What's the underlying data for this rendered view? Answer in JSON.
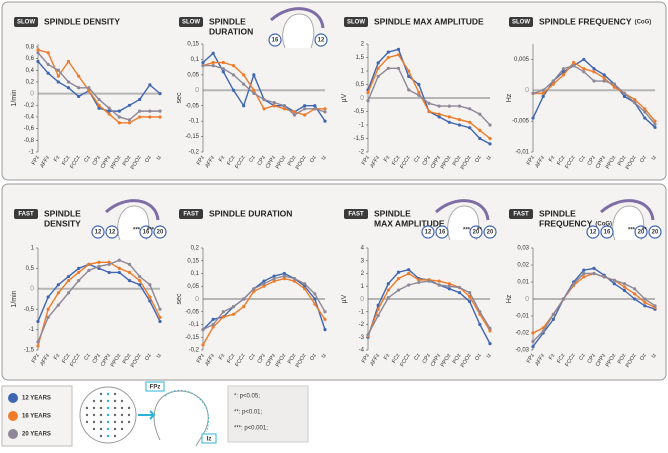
{
  "chart_data": [
    {
      "type": "line",
      "badge": "SLOW",
      "title": [
        "SPINDLE DENSITY"
      ],
      "ylabel": "1/min",
      "categories": [
        "FPz",
        "AFFz",
        "Fz",
        "FCz",
        "FCCz",
        "Cz",
        "CPz",
        "CPPz",
        "PPOz",
        "POz",
        "POOz",
        "Oz",
        "Iz"
      ],
      "ylim": [
        -1,
        0.85
      ],
      "yticks": [
        {
          "value": 0.8,
          "label": "0,8"
        },
        {
          "value": 0.6,
          "label": "0,6"
        },
        {
          "value": 0.4,
          "label": "0,4"
        },
        {
          "value": 0.2,
          "label": "0,2"
        },
        0,
        {
          "value": -0.2,
          "label": "-0,2"
        },
        {
          "value": -0.4,
          "label": "-0,4"
        },
        {
          "value": -0.6,
          "label": "-0,6"
        },
        {
          "value": -0.8,
          "label": "-0,8"
        },
        -1
      ],
      "series": [
        {
          "name": "12 YEARS",
          "color": "#3f66b0",
          "values": [
            0.55,
            0.35,
            0.2,
            0.1,
            -0.05,
            0.05,
            -0.25,
            -0.3,
            -0.3,
            -0.2,
            -0.1,
            0.15,
            0
          ]
        },
        {
          "name": "16 YEARS",
          "color": "#ee7b2a",
          "values": [
            0.75,
            0.7,
            0.3,
            0.55,
            0.3,
            0.05,
            -0.2,
            -0.35,
            -0.5,
            -0.5,
            -0.4,
            -0.4,
            -0.4
          ]
        },
        {
          "name": "20 YEARS",
          "color": "#8e8797",
          "values": [
            0.7,
            0.5,
            0.4,
            0.2,
            0.1,
            0.1,
            -0.1,
            -0.25,
            -0.4,
            -0.45,
            -0.3,
            -0.3,
            -0.3
          ]
        }
      ]
    },
    {
      "type": "line",
      "badge": "SLOW",
      "title": [
        "SPINDLE",
        "DURATION"
      ],
      "ylabel": "sec",
      "annotations": [
        "16",
        "12"
      ],
      "categories": [
        "FPz",
        "AFFz",
        "Fz",
        "FCz",
        "FCCz",
        "Cz",
        "CPz",
        "CPPz",
        "PPOz",
        "POz",
        "POOz",
        "Oz",
        "Iz"
      ],
      "ylim": [
        -0.2,
        0.15
      ],
      "yticks": [
        {
          "value": 0.15,
          "label": "0,15"
        },
        {
          "value": 0.1,
          "label": "0,1"
        },
        {
          "value": 0.05,
          "label": "0,05"
        },
        0,
        {
          "value": -0.05,
          "label": "-0,05"
        },
        {
          "value": -0.1,
          "label": "-0,1"
        },
        {
          "value": -0.15,
          "label": "-0,15"
        },
        {
          "value": -0.2,
          "label": "-0,2"
        }
      ],
      "series": [
        {
          "name": "12 YEARS",
          "color": "#3f66b0",
          "values": [
            0.09,
            0.12,
            0.06,
            0.0,
            -0.05,
            0.05,
            -0.03,
            -0.05,
            -0.05,
            -0.07,
            -0.05,
            -0.05,
            -0.1
          ]
        },
        {
          "name": "16 YEARS",
          "color": "#ee7b2a",
          "values": [
            0.08,
            0.09,
            0.09,
            0.08,
            0.05,
            0.0,
            -0.06,
            -0.05,
            -0.06,
            -0.07,
            -0.08,
            -0.06,
            -0.06
          ]
        },
        {
          "name": "20 YEARS",
          "color": "#8e8797",
          "values": [
            0.08,
            0.08,
            0.07,
            0.05,
            0.02,
            -0.01,
            -0.03,
            -0.04,
            -0.05,
            -0.08,
            -0.06,
            -0.06,
            -0.07
          ]
        }
      ]
    },
    {
      "type": "line",
      "badge": "SLOW",
      "title": [
        "SPINDLE MAX AMPLITUDE"
      ],
      "ylabel": "µV",
      "categories": [
        "FPz",
        "AFFz",
        "Fz",
        "FCz",
        "FCCz",
        "Cz",
        "CPz",
        "CPPz",
        "PPOz",
        "POz",
        "POOz",
        "Oz",
        "Iz"
      ],
      "ylim": [
        -2,
        2
      ],
      "yticks": [
        2,
        {
          "value": 1.5,
          "label": "1,5"
        },
        1,
        {
          "value": 0.5,
          "label": "0,5"
        },
        0,
        {
          "value": -0.5,
          "label": "-0,5"
        },
        -1,
        {
          "value": -1.5,
          "label": "-1,5"
        },
        -2
      ],
      "series": [
        {
          "name": "12 YEARS",
          "color": "#3f66b0",
          "values": [
            0.3,
            1.3,
            1.7,
            1.8,
            0.8,
            0.5,
            -0.5,
            -0.7,
            -0.9,
            -1.0,
            -1.1,
            -1.5,
            -1.7
          ]
        },
        {
          "name": "16 YEARS",
          "color": "#ee7b2a",
          "values": [
            0.2,
            1.1,
            1.5,
            1.6,
            1.0,
            0.2,
            -0.5,
            -0.6,
            -0.7,
            -0.8,
            -0.9,
            -1.2,
            -1.5
          ]
        },
        {
          "name": "20 YEARS",
          "color": "#8e8797",
          "values": [
            -0.1,
            0.8,
            1.1,
            1.1,
            0.3,
            0.1,
            -0.2,
            -0.3,
            -0.3,
            -0.3,
            -0.4,
            -0.6,
            -1.0
          ]
        }
      ]
    },
    {
      "type": "line",
      "badge": "SLOW",
      "title": [
        "SPINDLE FREQUENCY"
      ],
      "title_note": "(CoG)",
      "ylabel": "Hz",
      "categories": [
        "FPz",
        "AFFz",
        "Fz",
        "FCz",
        "FCCz",
        "Cz",
        "CPz",
        "CPPz",
        "PPOz",
        "POz",
        "POOz",
        "Oz",
        "Iz"
      ],
      "ylim": [
        -0.01,
        0.0075
      ],
      "yticks": [
        {
          "value": 0.005,
          "label": "0,005"
        },
        0,
        {
          "value": -0.005,
          "label": "-0,005"
        },
        {
          "value": -0.01,
          "label": "-0,01"
        }
      ],
      "series": [
        {
          "name": "12 YEARS",
          "color": "#3f66b0",
          "values": [
            -0.0045,
            -0.001,
            0.0015,
            0.003,
            0.004,
            0.005,
            0.0035,
            0.0025,
            0.001,
            -0.001,
            -0.002,
            -0.0045,
            -0.006
          ]
        },
        {
          "name": "16 YEARS",
          "color": "#ee7b2a",
          "values": [
            -0.0005,
            -0.0005,
            0.001,
            0.0025,
            0.0045,
            0.0035,
            0.003,
            0.002,
            0.0005,
            -0.0005,
            -0.0015,
            -0.003,
            -0.005
          ]
        },
        {
          "name": "20 YEARS",
          "color": "#8e8797",
          "values": [
            -0.0005,
            0.0,
            0.0015,
            0.0035,
            0.004,
            0.003,
            0.0015,
            0.0015,
            0.001,
            -0.0005,
            -0.002,
            -0.0035,
            -0.0055
          ]
        }
      ]
    },
    {
      "type": "line",
      "badge": "FAST",
      "title": [
        "SPINDLE",
        "DENSITY"
      ],
      "ylabel": "1/min",
      "annotations": [
        "12",
        "12",
        "16",
        "***",
        "20",
        "***"
      ],
      "categories": [
        "FPz",
        "AFFz",
        "Fz",
        "FCz",
        "FCCz",
        "Cz",
        "CPz",
        "CPPz",
        "PPOz",
        "POz",
        "POOz",
        "Oz",
        "Iz"
      ],
      "ylim": [
        -1.5,
        1
      ],
      "yticks": [
        1,
        {
          "value": 0.5,
          "label": "0,5"
        },
        0,
        {
          "value": -0.5,
          "label": "-0,5"
        },
        -1,
        {
          "value": -1.5,
          "label": "-1,5"
        }
      ],
      "series": [
        {
          "name": "12 YEARS",
          "color": "#3f66b0",
          "values": [
            -0.8,
            -0.2,
            0.1,
            0.3,
            0.5,
            0.6,
            0.5,
            0.4,
            0.4,
            0.2,
            0.1,
            -0.3,
            -0.8
          ]
        },
        {
          "name": "16 YEARS",
          "color": "#ee7b2a",
          "values": [
            -1.4,
            -0.5,
            -0.1,
            0.2,
            0.4,
            0.6,
            0.65,
            0.65,
            0.5,
            0.4,
            0.2,
            -0.2,
            -0.7
          ]
        },
        {
          "name": "20 YEARS",
          "color": "#8e8797",
          "values": [
            -1.3,
            -0.7,
            -0.4,
            -0.1,
            0.2,
            0.45,
            0.55,
            0.6,
            0.7,
            0.6,
            0.3,
            0.1,
            -0.5
          ]
        }
      ]
    },
    {
      "type": "line",
      "badge": "FAST",
      "title": [
        "SPINDLE DURATION"
      ],
      "ylabel": "sec",
      "categories": [
        "FPz",
        "AFFz",
        "Fz",
        "FCz",
        "FCCz",
        "Cz",
        "CPz",
        "CPPz",
        "PPOz",
        "POz",
        "POOz",
        "Oz",
        "Iz"
      ],
      "ylim": [
        -0.2,
        0.2
      ],
      "yticks": [
        {
          "value": 0.2,
          "label": "0,2"
        },
        {
          "value": 0.15,
          "label": "0,15"
        },
        {
          "value": 0.1,
          "label": "0,1"
        },
        {
          "value": 0.05,
          "label": "0,05"
        },
        0,
        {
          "value": -0.05,
          "label": "-0,05"
        },
        {
          "value": -0.1,
          "label": "-0,1"
        },
        {
          "value": -0.15,
          "label": "-0,15"
        },
        {
          "value": -0.2,
          "label": "-0,2"
        }
      ],
      "series": [
        {
          "name": "12 YEARS",
          "color": "#3f66b0",
          "values": [
            -0.12,
            -0.08,
            -0.07,
            -0.03,
            0.0,
            0.04,
            0.07,
            0.09,
            0.1,
            0.08,
            0.05,
            0.0,
            -0.12
          ]
        },
        {
          "name": "16 YEARS",
          "color": "#ee7b2a",
          "values": [
            -0.18,
            -0.11,
            -0.07,
            -0.06,
            -0.03,
            0.03,
            0.05,
            0.07,
            0.08,
            0.07,
            0.04,
            -0.02,
            -0.08
          ]
        },
        {
          "name": "20 YEARS",
          "color": "#8e8797",
          "values": [
            -0.12,
            -0.1,
            -0.05,
            -0.03,
            0.0,
            0.04,
            0.06,
            0.08,
            0.09,
            0.08,
            0.06,
            0.02,
            -0.05
          ]
        }
      ]
    },
    {
      "type": "line",
      "badge": "FAST",
      "title": [
        "SPINDLE",
        "MAX AMPLITUDE"
      ],
      "ylabel": "µV",
      "annotations": [
        "12",
        "16",
        "20",
        "***",
        "20",
        "**"
      ],
      "categories": [
        "FPz",
        "AFFz",
        "Fz",
        "FCz",
        "FCCz",
        "Cz",
        "CPz",
        "CPPz",
        "PPOz",
        "POz",
        "POOz",
        "Oz",
        "Iz"
      ],
      "ylim": [
        -4,
        4
      ],
      "yticks": [
        4,
        3,
        2,
        1,
        0,
        -1,
        -2,
        -3,
        -4
      ],
      "series": [
        {
          "name": "12 YEARS",
          "color": "#3f66b0",
          "values": [
            -3,
            -0.5,
            1.2,
            2.1,
            2.3,
            1.6,
            1.5,
            1.1,
            0.8,
            0.5,
            -0.2,
            -2.0,
            -3.5
          ]
        },
        {
          "name": "16 YEARS",
          "color": "#ee7b2a",
          "values": [
            -2.9,
            -0.8,
            0.7,
            1.6,
            2.0,
            1.5,
            1.5,
            1.4,
            1.2,
            0.9,
            0.2,
            -1.2,
            -2.5
          ]
        },
        {
          "name": "20 YEARS",
          "color": "#8e8797",
          "values": [
            -2.8,
            -1.3,
            0.1,
            0.7,
            1.1,
            1.3,
            1.4,
            1.1,
            1.0,
            0.9,
            0.5,
            -1.0,
            -2.3
          ]
        }
      ]
    },
    {
      "type": "line",
      "badge": "FAST",
      "title": [
        "SPINDLE",
        "FREQUENCY"
      ],
      "title_note": "(CoG)",
      "ylabel": "Hz",
      "annotations": [
        "12",
        "16",
        "20",
        "***",
        "20",
        "**"
      ],
      "categories": [
        "FPz",
        "AFFz",
        "Fz",
        "FCz",
        "FCCz",
        "Cz",
        "CPz",
        "CPPz",
        "PPOz",
        "POz",
        "POOz",
        "Oz",
        "Iz"
      ],
      "ylim": [
        -0.03,
        0.03
      ],
      "yticks": [
        {
          "value": 0.03,
          "label": "0,03"
        },
        {
          "value": 0.02,
          "label": "0,02"
        },
        {
          "value": 0.01,
          "label": "0,01"
        },
        0,
        {
          "value": -0.01,
          "label": "-0,01"
        },
        {
          "value": -0.02,
          "label": "-0,02"
        },
        {
          "value": -0.03,
          "label": "-0,03"
        }
      ],
      "series": [
        {
          "name": "12 YEARS",
          "color": "#3f66b0",
          "values": [
            -0.028,
            -0.02,
            -0.012,
            0.0,
            0.01,
            0.017,
            0.018,
            0.014,
            0.009,
            0.005,
            0.0,
            -0.004,
            -0.006
          ]
        },
        {
          "name": "16 YEARS",
          "color": "#ee7b2a",
          "values": [
            -0.02,
            -0.017,
            -0.009,
            0.0,
            0.008,
            0.013,
            0.015,
            0.013,
            0.011,
            0.007,
            0.003,
            -0.002,
            -0.005
          ]
        },
        {
          "name": "20 YEARS",
          "color": "#8e8797",
          "values": [
            -0.025,
            -0.019,
            -0.009,
            0.0,
            0.009,
            0.015,
            0.015,
            0.013,
            0.011,
            0.009,
            0.006,
            0.0,
            -0.004
          ]
        }
      ]
    }
  ],
  "head_diagram": {
    "front": "FPz",
    "back": "Iz"
  },
  "significance": [
    "*: p<0.05;",
    "**: p<0.01;",
    "***: p<0.001;"
  ]
}
